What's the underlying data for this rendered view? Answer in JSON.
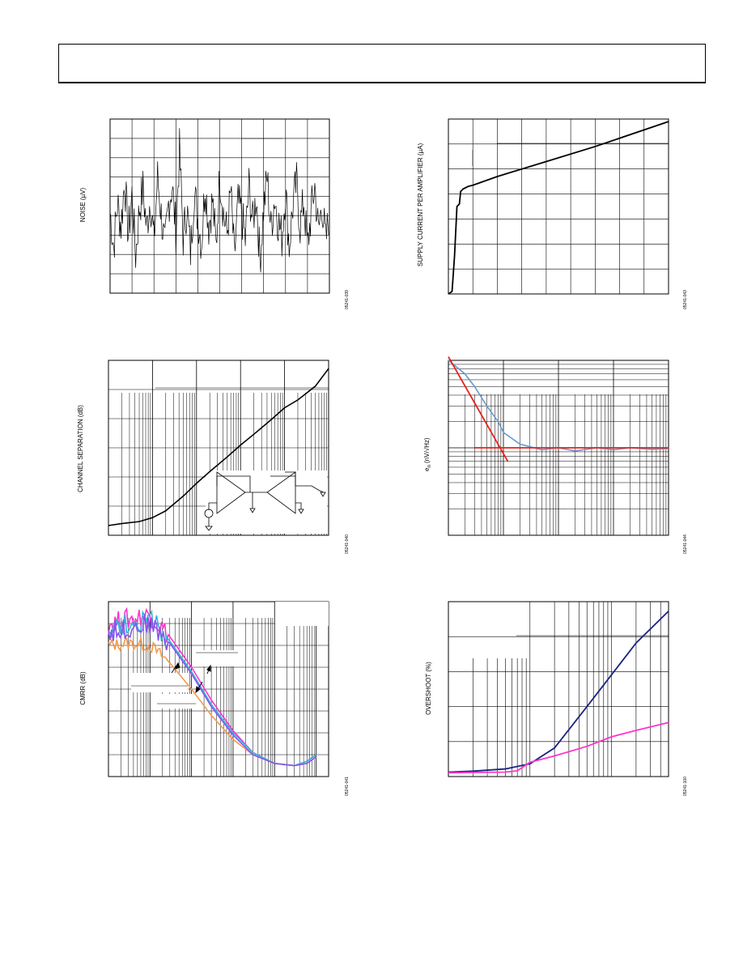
{
  "charts": {
    "noise": {
      "ylabel": "NOISE (µV)",
      "fig_id": "05241-039"
    },
    "supply": {
      "ylabel": "SUPPLY CURRENT PER AMPLIFIER (µA)",
      "fig_id": "05241-043"
    },
    "chsep": {
      "ylabel": "CHANNEL SEPARATION (dB)",
      "fig_id": "05241-040"
    },
    "en": {
      "ylabel_main": "e",
      "ylabel_sub": "n",
      "ylabel_rest": " (nV/√Hz)",
      "fig_id": "05241-044"
    },
    "cmrr": {
      "ylabel": "CMRR (dB)",
      "fig_id": "05241-041"
    },
    "overshoot": {
      "ylabel": "OVERSHOOT (%)",
      "fig_id": "05241-100"
    }
  },
  "colors": {
    "axis": "#000000",
    "blue": "#1a237e",
    "magenta": "#ff33cc",
    "red": "#e8201a",
    "lightblue": "#6699cc",
    "cyan": "#33b5d9",
    "orange": "#f49a4a",
    "violet": "#8855ee"
  },
  "chart_data": [
    {
      "id": "noise",
      "type": "line",
      "ylabel": "NOISE (µV)",
      "x": [
        0,
        1,
        2,
        3,
        4,
        5,
        6,
        7,
        8,
        9,
        10,
        11,
        12,
        13,
        14,
        15,
        16,
        17,
        18,
        19,
        20,
        21,
        22,
        23,
        24,
        25,
        26,
        27,
        28,
        29,
        30,
        31,
        32,
        33,
        34,
        35,
        36,
        37,
        38,
        39,
        40,
        41,
        42,
        43,
        44,
        45,
        46,
        47,
        48,
        49,
        50,
        51,
        52,
        53,
        54,
        55,
        56,
        57,
        58,
        59,
        60
      ],
      "y": [
        0.3,
        -0.9,
        0.6,
        -0.2,
        1.4,
        -0.5,
        0.9,
        -1.2,
        0.4,
        1.1,
        -0.3,
        0.8,
        -0.7,
        1.5,
        0.2,
        -1.0,
        0.6,
        1.2,
        -0.4,
        2.4,
        -0.6,
        0.5,
        -1.1,
        1.0,
        0.1,
        -0.8,
        1.3,
        -0.2,
        0.7,
        -0.9,
        1.6,
        0.3,
        -0.5,
        1.0,
        -1.3,
        0.6,
        0.2,
        -0.7,
        1.2,
        -0.1,
        0.9,
        -1.4,
        0.4,
        1.5,
        -0.3,
        0.8,
        0.0,
        -0.6,
        1.1,
        -0.9,
        0.5,
        1.3,
        -0.2,
        0.7,
        -1.0,
        0.3,
        1.2,
        -0.4,
        0.6,
        -0.8,
        0.4
      ],
      "xlim": [
        0,
        60
      ],
      "ylim": [
        -2.5,
        3.5
      ],
      "grid": true
    },
    {
      "id": "supply",
      "type": "line",
      "ylabel": "SUPPLY CURRENT PER AMPLIFIER (µA)",
      "x": [
        0,
        0.15,
        0.25,
        0.35,
        0.45,
        0.5,
        0.6,
        0.8,
        1.0,
        2.0,
        4.0,
        6.0,
        9.0
      ],
      "y": [
        0,
        0.1,
        1.5,
        3.5,
        3.6,
        4.1,
        4.2,
        4.3,
        4.35,
        4.7,
        5.3,
        5.9,
        6.9
      ],
      "xlim": [
        0,
        9
      ],
      "ylim": [
        0,
        7
      ],
      "grid": true
    },
    {
      "id": "chsep",
      "type": "line",
      "ylabel": "CHANNEL SEPARATION (dB)",
      "xscale": "log",
      "x": [
        10,
        20,
        50,
        100,
        200,
        500,
        1000,
        2000,
        5000,
        10000,
        20000,
        50000,
        100000,
        200000,
        500000,
        1000000
      ],
      "y": [
        0,
        0.2,
        0.4,
        0.8,
        1.5,
        3.0,
        4.3,
        5.5,
        7.0,
        8.2,
        9.3,
        10.8,
        12.0,
        12.8,
        14.2,
        16.0
      ],
      "xlim": [
        10,
        1000000
      ],
      "ylim": [
        0,
        17
      ],
      "grid": true
    },
    {
      "id": "en",
      "type": "line",
      "ylabel": "e n (nV/√Hz)",
      "xscale": "log",
      "yscale": "log",
      "series": [
        {
          "x": [
            1,
            2,
            3,
            5,
            8,
            10,
            20,
            50,
            100,
            200,
            500,
            1000,
            2000,
            5000,
            10000
          ],
          "y": [
            1000,
            700,
            500,
            300,
            200,
            150,
            110,
            95,
            100,
            92,
            100,
            95,
            100,
            96,
            98
          ]
        },
        {
          "x": [
            1,
            12
          ],
          "y": [
            1100,
            70
          ]
        },
        {
          "x": [
            3,
            10000
          ],
          "y": [
            100,
            100
          ]
        }
      ],
      "xlim": [
        1,
        10000
      ],
      "ylim": [
        10,
        1000
      ],
      "grid": true
    },
    {
      "id": "cmrr",
      "type": "line",
      "ylabel": "CMRR (dB)",
      "xscale": "log",
      "series": [
        {
          "x": [
            10,
            30,
            100,
            300,
            1000,
            3000,
            10000,
            30000,
            100000,
            300000,
            600000,
            1000000
          ],
          "y": [
            80,
            81,
            80,
            72,
            60,
            48,
            37,
            30,
            26,
            25,
            26,
            29
          ]
        },
        {
          "x": [
            10,
            30,
            100,
            300,
            1000,
            3000,
            10000,
            30000,
            100000,
            300000,
            600000,
            1000000
          ],
          "y": [
            90,
            92,
            94,
            84,
            70,
            55,
            41,
            31,
            26,
            25,
            27,
            30
          ]
        },
        {
          "x": [
            10,
            30,
            100,
            300,
            1000,
            3000,
            10000,
            30000,
            100000,
            300000,
            600000,
            1000000
          ],
          "y": [
            88,
            90,
            92,
            82,
            68,
            53,
            40,
            31,
            26,
            25,
            27,
            30
          ]
        },
        {
          "x": [
            10,
            30,
            100,
            300,
            1000,
            3000,
            10000,
            30000,
            100000,
            300000,
            600000,
            1000000
          ],
          "y": [
            86,
            88,
            90,
            81,
            67,
            52,
            39,
            30,
            26,
            25,
            26,
            29
          ]
        }
      ],
      "xlim": [
        10,
        2000000
      ],
      "ylim": [
        20,
        100
      ],
      "grid": true
    },
    {
      "id": "overshoot",
      "type": "line",
      "ylabel": "OVERSHOOT (%)",
      "xscale": "log",
      "series": [
        {
          "x": [
            10,
            20,
            50,
            100,
            200,
            500,
            1000,
            2000,
            5000
          ],
          "y": [
            1.4,
            1.7,
            2.4,
            4.0,
            9,
            22,
            32,
            42,
            52
          ]
        },
        {
          "x": [
            10,
            20,
            50,
            70,
            100,
            200,
            500,
            1000,
            2000,
            5000
          ],
          "y": [
            1.2,
            1.3,
            1.4,
            1.8,
            4.5,
            6.5,
            9.5,
            12.5,
            14.5,
            17
          ]
        }
      ],
      "xlim": [
        10,
        5000
      ],
      "ylim": [
        0,
        55
      ],
      "grid": true
    }
  ]
}
